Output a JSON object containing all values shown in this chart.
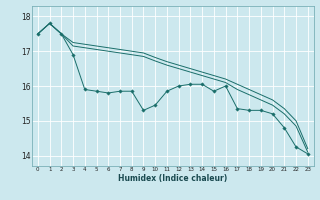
{
  "xlabel": "Humidex (Indice chaleur)",
  "background_color": "#cce8ee",
  "grid_color": "#ffffff",
  "line_color": "#1a6e6a",
  "xmin": -0.5,
  "xmax": 23.5,
  "ymin": 13.7,
  "ymax": 18.3,
  "yticks": [
    14,
    15,
    16,
    17,
    18
  ],
  "xticks": [
    0,
    1,
    2,
    3,
    4,
    5,
    6,
    7,
    8,
    9,
    10,
    11,
    12,
    13,
    14,
    15,
    16,
    17,
    18,
    19,
    20,
    21,
    22,
    23
  ],
  "series1": [
    17.5,
    17.8,
    17.5,
    16.9,
    15.9,
    15.85,
    15.8,
    15.85,
    15.85,
    15.3,
    15.45,
    15.85,
    16.0,
    16.05,
    16.05,
    15.85,
    16.0,
    15.35,
    15.3,
    15.3,
    15.2,
    14.8,
    14.25,
    14.05
  ],
  "series2": [
    17.5,
    17.8,
    17.5,
    17.15,
    17.1,
    17.05,
    17.0,
    16.95,
    16.9,
    16.85,
    16.72,
    16.6,
    16.5,
    16.4,
    16.3,
    16.2,
    16.1,
    15.9,
    15.75,
    15.6,
    15.45,
    15.2,
    14.85,
    14.1
  ],
  "series3": [
    17.5,
    17.8,
    17.5,
    17.25,
    17.2,
    17.15,
    17.1,
    17.05,
    17.0,
    16.95,
    16.82,
    16.7,
    16.6,
    16.5,
    16.4,
    16.3,
    16.2,
    16.05,
    15.9,
    15.75,
    15.6,
    15.35,
    15.0,
    14.2
  ]
}
